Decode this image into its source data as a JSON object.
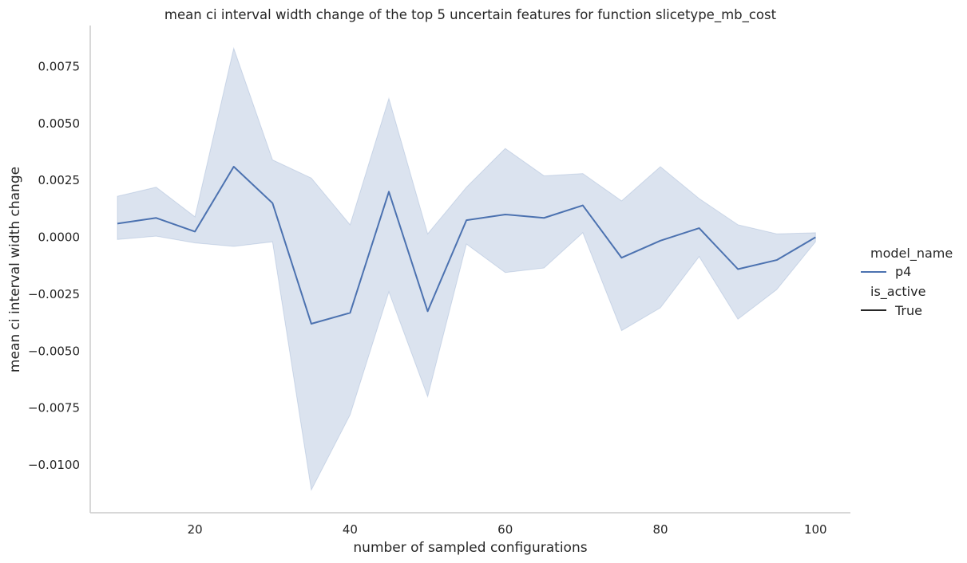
{
  "chart_data": {
    "type": "line",
    "title": "mean ci interval width change of the top 5 uncertain features for function slicetype_mb_cost",
    "xlabel": "number of sampled configurations",
    "ylabel": "mean ci interval width change",
    "xlim": [
      6.5,
      104.5
    ],
    "ylim": [
      -0.0121,
      0.0093
    ],
    "xticks": [
      20,
      40,
      60,
      80,
      100
    ],
    "yticks": [
      -0.01,
      -0.0075,
      -0.005,
      -0.0025,
      0.0,
      0.0025,
      0.005,
      0.0075
    ],
    "yticklabels": [
      "−0.0100",
      "−0.0075",
      "−0.0050",
      "−0.0025",
      "0.0000",
      "0.0025",
      "0.0050",
      "0.0075"
    ],
    "xticklabels": [
      "20",
      "40",
      "60",
      "80",
      "100"
    ],
    "grid": false,
    "legend_position": "right",
    "legend": {
      "title_hue": "model_name",
      "hue_entry": "p4",
      "title_style": "is_active",
      "style_entry": "True"
    },
    "colors": {
      "line": "#4c72b0",
      "band": "#4c72b0",
      "legend_style": "#262626",
      "axis": "#cccccc"
    },
    "series": [
      {
        "name": "p4",
        "x": [
          10,
          15,
          20,
          25,
          30,
          35,
          40,
          45,
          50,
          55,
          60,
          65,
          70,
          75,
          80,
          85,
          90,
          95,
          100
        ],
        "y": [
          0.0006,
          0.00085,
          0.00025,
          0.0031,
          0.0015,
          -0.0038,
          -0.00332,
          0.002,
          -0.00325,
          0.00075,
          0.001,
          0.00085,
          0.0014,
          -0.0009,
          -0.00015,
          0.0004,
          -0.0014,
          -0.001,
          0.0
        ],
        "ci_lower": [
          -0.0001,
          5e-05,
          -0.00025,
          -0.0004,
          -0.0002,
          -0.0111,
          -0.0078,
          -0.0024,
          -0.007,
          -0.0003,
          -0.00155,
          -0.00135,
          0.0002,
          -0.0041,
          -0.0031,
          -0.00085,
          -0.0036,
          -0.0023,
          -0.0002
        ],
        "ci_upper": [
          0.0018,
          0.0022,
          0.0009,
          0.0083,
          0.0034,
          0.0026,
          0.00055,
          0.0061,
          0.00015,
          0.0022,
          0.0039,
          0.0027,
          0.0028,
          0.0016,
          0.0031,
          0.0017,
          0.00055,
          0.00015,
          0.0002
        ]
      }
    ]
  }
}
